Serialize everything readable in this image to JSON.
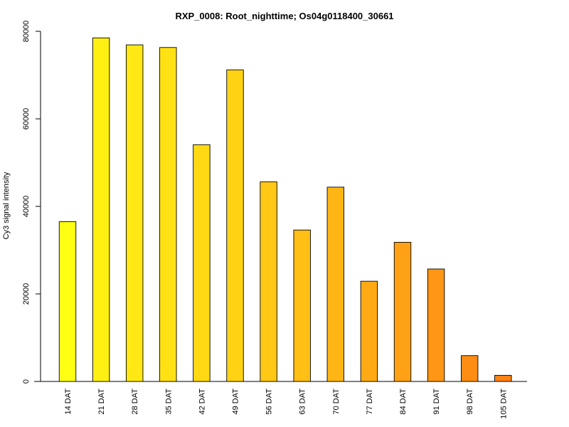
{
  "chart_data": {
    "type": "bar",
    "title": "RXP_0008: Root_nighttime; Os04g0118400_30661",
    "xlabel": "",
    "ylabel": "Cy3 signal intensity",
    "ylim": [
      0,
      80000
    ],
    "yticks": [
      0,
      20000,
      40000,
      60000,
      80000
    ],
    "ytick_labels": [
      "0",
      "20000",
      "40000",
      "60000",
      "80000"
    ],
    "categories": [
      "14 DAT",
      "21 DAT",
      "28 DAT",
      "35 DAT",
      "42 DAT",
      "49 DAT",
      "56 DAT",
      "63 DAT",
      "70 DAT",
      "77 DAT",
      "84 DAT",
      "91 DAT",
      "98 DAT",
      "105 DAT"
    ],
    "values": [
      36500,
      78500,
      76900,
      76300,
      54100,
      71200,
      45600,
      34600,
      44400,
      22900,
      31800,
      25700,
      5900,
      1400
    ],
    "colors": [
      "#FFFF14",
      "#FFF014",
      "#FFE814",
      "#FFE114",
      "#FFD914",
      "#FFD214",
      "#FFC814",
      "#FFBF14",
      "#FFB614",
      "#FFAA14",
      "#FFA114",
      "#FF9614",
      "#FF8D14",
      "#FF8214"
    ],
    "grid": false,
    "legend": "none"
  }
}
